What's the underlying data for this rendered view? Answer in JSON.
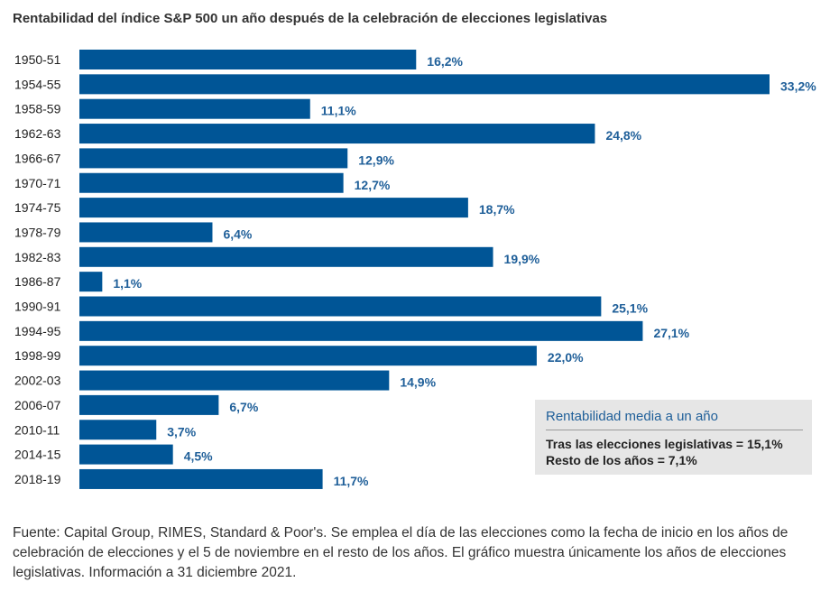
{
  "title": "Rentabilidad del índice S&P 500 un año después de la celebración de elecciones legislativas",
  "colors": {
    "bar": "#005596",
    "value_label": "#1f5f99",
    "callout_bg": "#e6e6e6"
  },
  "chart_data": {
    "type": "bar",
    "orientation": "horizontal",
    "title": "Rentabilidad del índice S&P 500 un año después de la celebración de elecciones legislativas",
    "categories": [
      "1950-51",
      "1954-55",
      "1958-59",
      "1962-63",
      "1966-67",
      "1970-71",
      "1974-75",
      "1978-79",
      "1982-83",
      "1986-87",
      "1990-91",
      "1994-95",
      "1998-99",
      "2002-03",
      "2006-07",
      "2010-11",
      "2014-15",
      "2018-19"
    ],
    "values": [
      16.2,
      33.2,
      11.1,
      24.8,
      12.9,
      12.7,
      18.7,
      6.4,
      19.9,
      1.1,
      25.1,
      27.1,
      22.0,
      14.9,
      6.7,
      3.7,
      4.5,
      11.7
    ],
    "value_labels": [
      "16,2%",
      "33,2%",
      "11,1%",
      "24,8%",
      "12,9%",
      "12,7%",
      "18,7%",
      "6,4%",
      "19,9%",
      "1,1%",
      "25,1%",
      "27,1%",
      "22,0%",
      "14,9%",
      "6,7%",
      "3,7%",
      "4,5%",
      "11,7%"
    ],
    "xlim": [
      0,
      33.2
    ],
    "grid": false
  },
  "callout": {
    "title": "Rentabilidad media a un año",
    "line1": "Tras las elecciones legislativas = 15,1%",
    "line2": "Resto de los años = 7,1%"
  },
  "footnote": "Fuente: Capital Group, RIMES, Standard & Poor's. Se emplea el día de las elecciones como la fecha de inicio en los años de celebración de elecciones y el 5 de noviembre en el resto de los años. El gráfico muestra únicamente los años de elecciones legislativas. Información a 31 diciembre 2021."
}
